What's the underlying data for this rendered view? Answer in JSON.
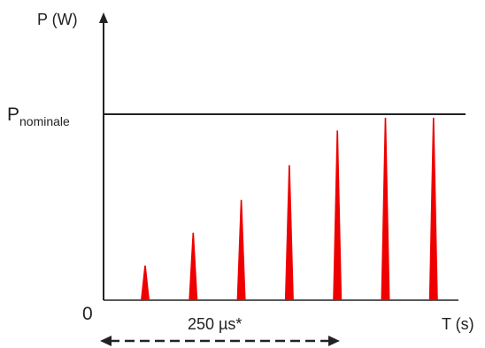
{
  "labels": {
    "y_axis": "P (W)",
    "x_axis": "T (s)",
    "origin": "0",
    "nominal_main": "P",
    "nominal_sub": "nominale",
    "duration": "250 µs*"
  },
  "colors": {
    "pulse": "#ee0000",
    "axis": "#222222",
    "nominal_line": "#222222"
  },
  "pulses": [
    {
      "level": 0.19
    },
    {
      "level": 0.37
    },
    {
      "level": 0.55
    },
    {
      "level": 0.74
    },
    {
      "level": 0.93
    },
    {
      "level": 1.0
    },
    {
      "level": 1.0
    }
  ]
}
